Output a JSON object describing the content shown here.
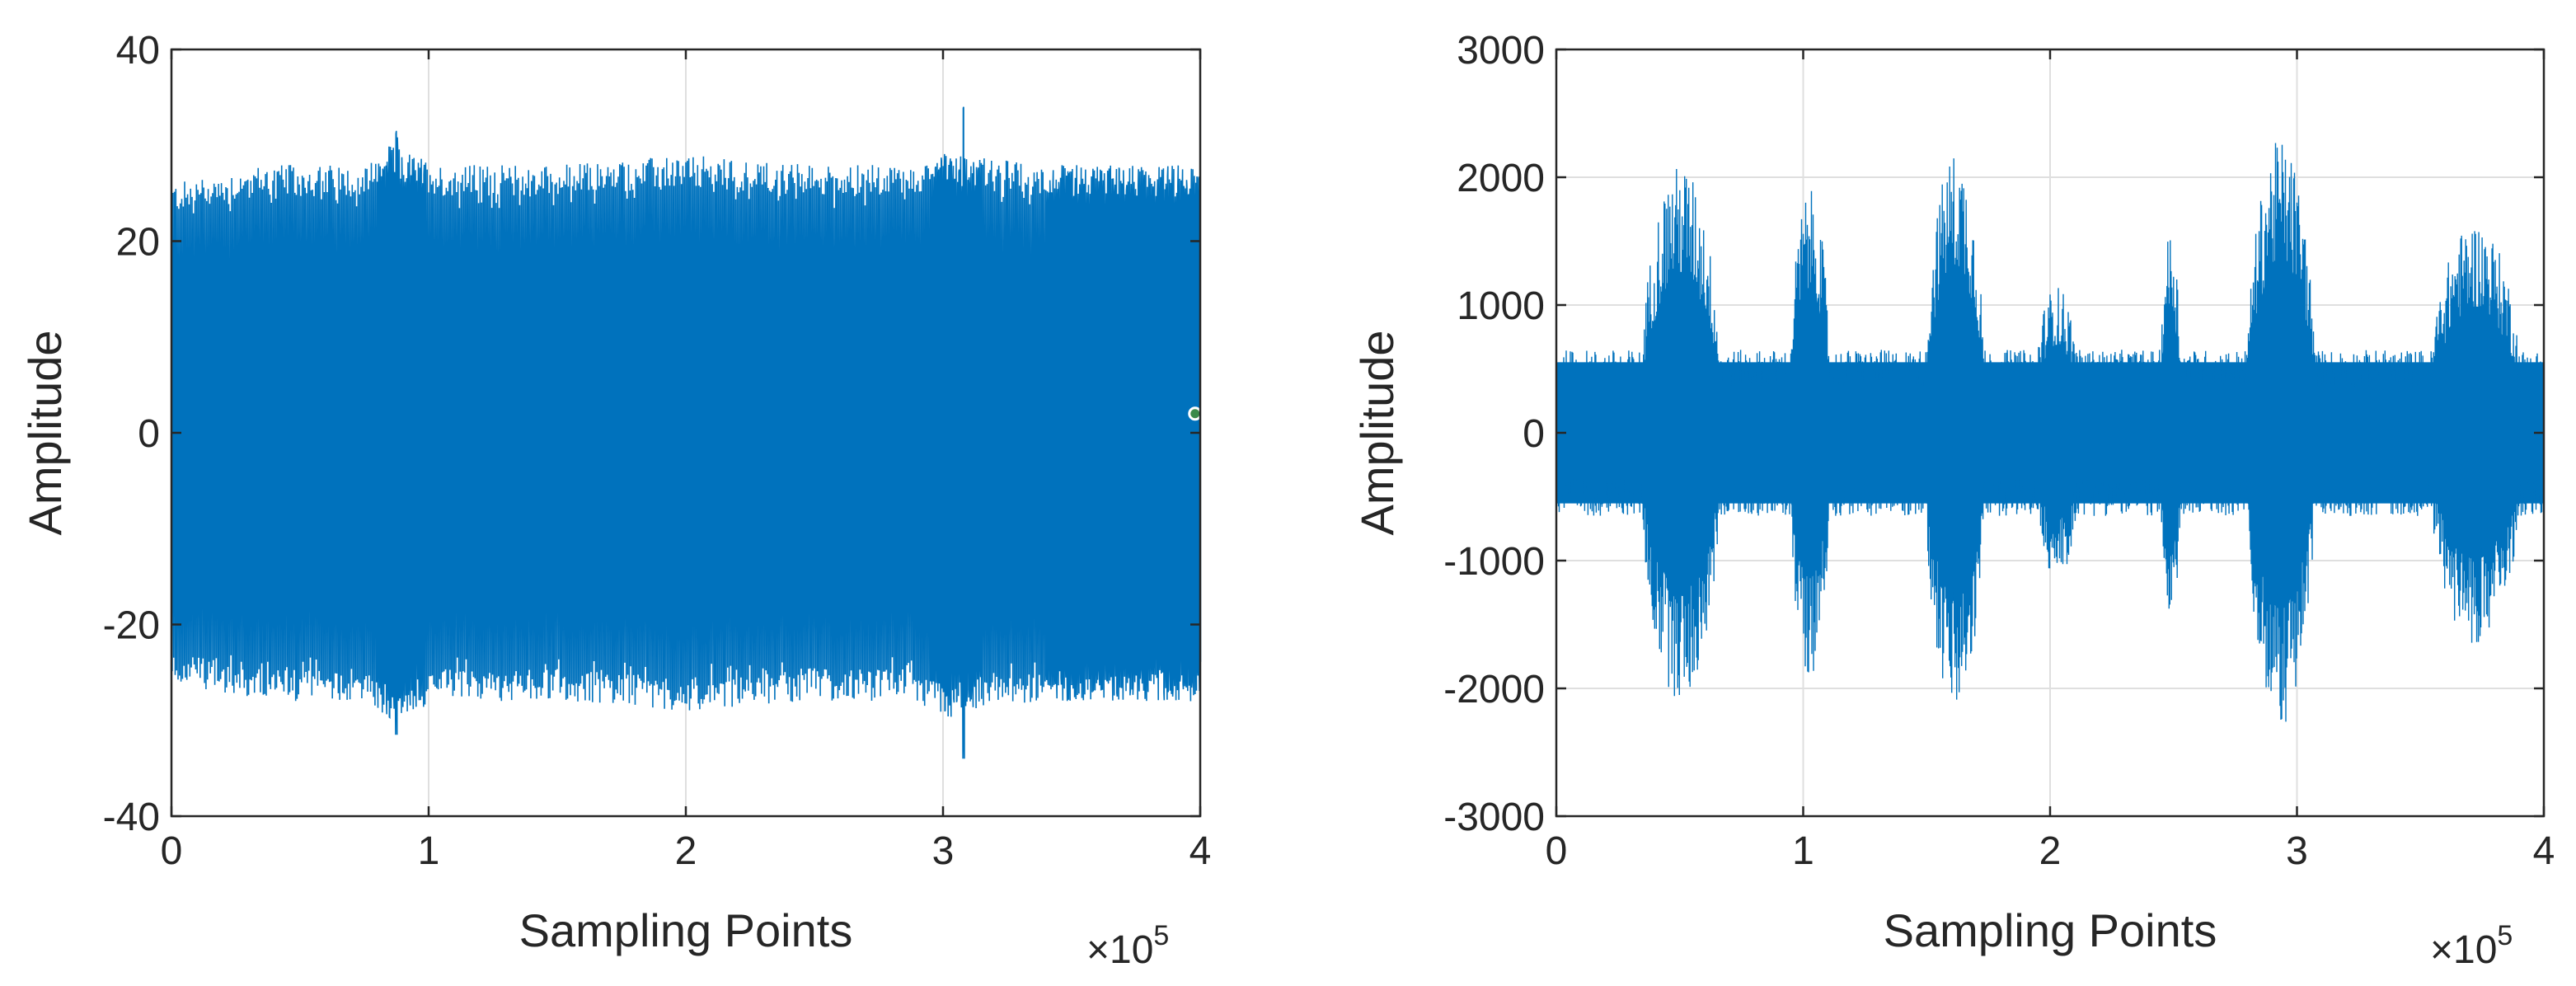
{
  "chart_data": [
    {
      "type": "line",
      "xlabel": "Sampling Points",
      "ylabel": "Amplitude",
      "x_exponent_label": "×10",
      "x_exponent_power": "5",
      "xlim": [
        0,
        4
      ],
      "ylim": [
        -40,
        40
      ],
      "xticks": [
        "0",
        "1",
        "2",
        "3",
        "4"
      ],
      "yticks": [
        "-40",
        "-20",
        "0",
        "20",
        "40"
      ],
      "grid": true,
      "color": "#0072BD",
      "x_scale": 100000,
      "baseline_amplitude": 26,
      "envelope_x": [
        0,
        0.35,
        0.75,
        0.85,
        0.95,
        1.05,
        1.5,
        2.0,
        2.5,
        2.9,
        3.0,
        3.1,
        3.4,
        3.6,
        4.0
      ],
      "envelope_y": [
        26,
        28,
        28,
        30,
        29,
        28,
        28,
        29,
        28,
        28,
        30,
        29,
        28,
        28,
        28
      ],
      "dense_regions": [
        [
          0.8,
          0.98
        ],
        [
          2.95,
          3.15
        ],
        [
          3.4,
          4.0
        ]
      ],
      "peak_max": 31.5,
      "peak_min": -34,
      "marker": {
        "x": 3.98,
        "y": 2
      }
    },
    {
      "type": "line",
      "xlabel": "Sampling Points",
      "ylabel": "Amplitude",
      "x_exponent_label": "×10",
      "x_exponent_power": "5",
      "xlim": [
        0,
        4
      ],
      "ylim": [
        -3000,
        3000
      ],
      "xticks": [
        "0",
        "1",
        "2",
        "3",
        "4"
      ],
      "yticks": [
        "-3000",
        "-2000",
        "-1000",
        "0",
        "1000",
        "2000",
        "3000"
      ],
      "grid": true,
      "color": "#0072BD",
      "x_scale": 100000,
      "baseline_amplitude": 650,
      "bursts": [
        {
          "start": 0.35,
          "end": 0.75,
          "peak": 2100
        },
        {
          "start": 0.95,
          "end": 1.15,
          "peak": 1900
        },
        {
          "start": 1.5,
          "end": 1.8,
          "peak": 2200
        },
        {
          "start": 1.95,
          "end": 2.15,
          "peak": 1150
        },
        {
          "start": 2.45,
          "end": 2.55,
          "peak": 1600
        },
        {
          "start": 2.8,
          "end": 3.15,
          "peak": 2300
        },
        {
          "start": 3.55,
          "end": 4.0,
          "peak": 1650
        }
      ],
      "peak_max": 2350,
      "peak_min": -2250
    }
  ]
}
